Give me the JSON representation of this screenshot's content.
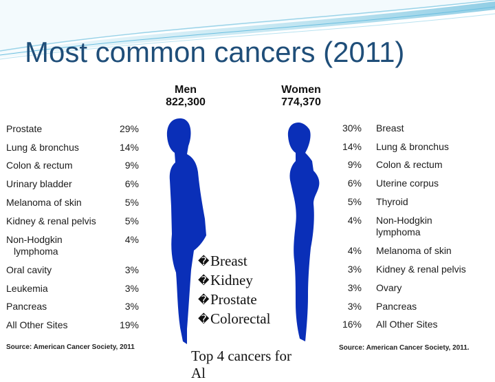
{
  "slide": {
    "title": "Most common cancers (2011)"
  },
  "men": {
    "heading": "Men",
    "total": "822,300",
    "rows": [
      {
        "site": "Prostate",
        "pct": "29%"
      },
      {
        "site": "Lung & bronchus",
        "pct": "14%"
      },
      {
        "site": "Colon & rectum",
        "pct": "9%"
      },
      {
        "site": "Urinary bladder",
        "pct": "6%"
      },
      {
        "site": "Melanoma of skin",
        "pct": "5%"
      },
      {
        "site": "Kidney & renal pelvis",
        "pct": "5%"
      },
      {
        "site": "Non-Hodgkin",
        "site2": "lymphoma",
        "pct": "4%"
      },
      {
        "site": "Oral cavity",
        "pct": "3%"
      },
      {
        "site": "Leukemia",
        "pct": "3%"
      },
      {
        "site": "Pancreas",
        "pct": "3%"
      },
      {
        "site": "All Other Sites",
        "pct": "19%"
      }
    ],
    "source": "Source: American Cancer Society, 2011"
  },
  "women": {
    "heading": "Women",
    "total": "774,370",
    "rows": [
      {
        "site": "Breast",
        "pct": "30%"
      },
      {
        "site": "Lung & bronchus",
        "pct": "14%"
      },
      {
        "site": "Colon & rectum",
        "pct": "9%"
      },
      {
        "site": "Uterine corpus",
        "pct": "6%"
      },
      {
        "site": "Thyroid",
        "pct": "5%"
      },
      {
        "site": "Non-Hodgkin",
        "site2": "lymphoma",
        "pct": "4%"
      },
      {
        "site": "Melanoma of skin",
        "pct": "4%"
      },
      {
        "site": "Kidney & renal pelvis",
        "pct": "3%"
      },
      {
        "site": "Ovary",
        "pct": "3%"
      },
      {
        "site": "Pancreas",
        "pct": "3%"
      },
      {
        "site": "All Other Sites",
        "pct": "16%"
      }
    ],
    "source": "Source: American Cancer Society, 2011."
  },
  "bullets": {
    "marker": "�",
    "items": [
      "Breast",
      "Kidney",
      "Prostate",
      "Colorectal"
    ]
  },
  "caption": {
    "line1": "Top 4 cancers for",
    "line2": "Al"
  },
  "colors": {
    "title": "#1f4e79",
    "silhouette": "#0a2fb8",
    "swoosh": "#7fc6e0"
  }
}
